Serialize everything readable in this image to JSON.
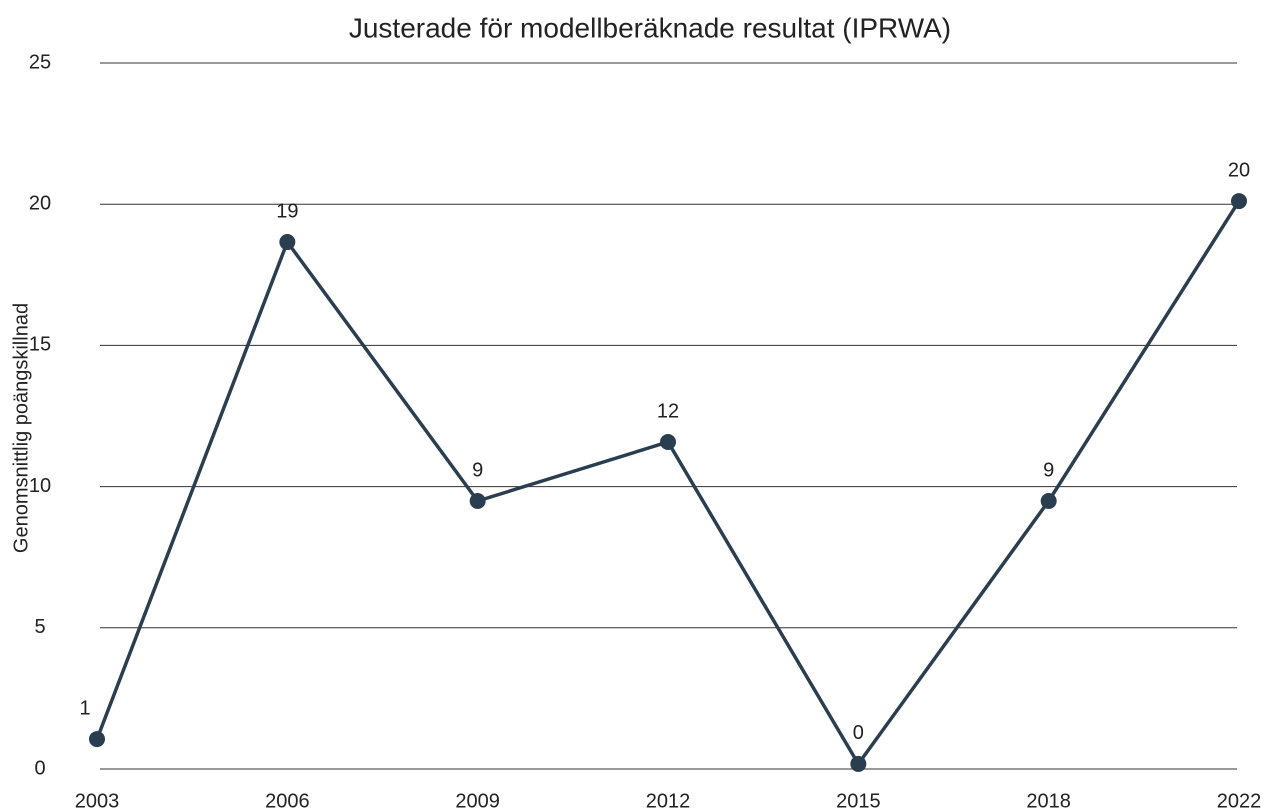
{
  "chart_data": {
    "type": "line",
    "title": "Justerade för modellberäknade resultat (IPRWA)",
    "y_label": "Genomsnittlig poängskillnad",
    "categories": [
      "2003",
      "2006",
      "2009",
      "2012",
      "2015",
      "2018",
      "2022"
    ],
    "values": [
      1.06,
      18.66,
      9.49,
      11.58,
      0.18,
      9.49,
      20.11
    ],
    "value_labels": [
      "1",
      "19",
      "9",
      "12",
      "0",
      "9",
      "20"
    ],
    "color": "#2b3e50",
    "ylim": [
      0,
      25
    ],
    "yticks": [
      0,
      5,
      10,
      15,
      20,
      25
    ],
    "grid": true
  }
}
